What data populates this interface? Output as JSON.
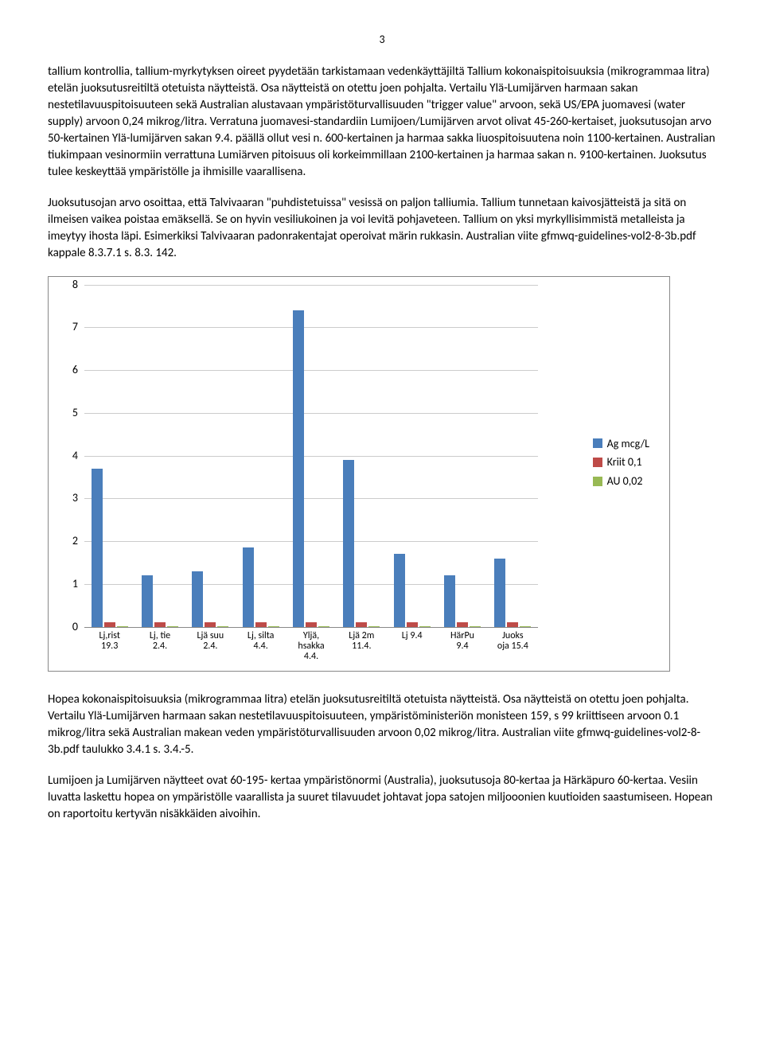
{
  "page_number": "3",
  "paragraphs": {
    "p1": "tallium kontrollia, tallium-myrkytyksen oireet pyydetään tarkistamaan vedenkäyttäjiltä Tallium kokonaispitoisuuksia (mikrogrammaa litra) etelän juoksutusreitiltä otetuista näytteistä. Osa näytteistä on otettu joen pohjalta. Vertailu Ylä-Lumijärven harmaan sakan nestetilavuuspitoisuuteen sekä Australian alustavaan ympäristöturvallisuuden \"trigger value\" arvoon, sekä US/EPA juomavesi (water supply) arvoon 0,24 mikrog/litra. Verratuna juomavesi-standardiin Lumijoen/Lumijärven arvot olivat 45-260-kertaiset, juoksutusojan arvo 50-kertainen Ylä-lumijärven sakan 9.4. päällä ollut vesi n. 600-kertainen ja harmaa sakka liuospitoisuutena noin 1100-kertainen. Australian tiukimpaan vesinormiin verrattuna Lumiärven pitoisuus oli korkeimmillaan 2100-kertainen ja harmaa sakan n. 9100-kertainen. Juoksutus tulee keskeyttää ympäristölle ja ihmisille vaarallisena.",
    "p2": "Juoksutusojan arvo osoittaa, että Talvivaaran \"puhdistetuissa\" vesissä on paljon talliumia. Tallium tunnetaan kaivosjätteistä ja sitä on ilmeisen vaikea poistaa emäksellä. Se on hyvin vesiliukoinen ja voi levitä pohjaveteen. Tallium on yksi myrkyllisimmistä metalleista ja imeytyy ihosta läpi. Esimerkiksi Talvivaaran padonrakentajat operoivat märin rukkasin.  Australian viite gfmwq-guidelines-vol2-8-3b.pdf  kappale 8.3.7.1  s. 8.3. 142.",
    "p3": "Hopea kokonaispitoisuuksia (mikrogrammaa litra) etelän juoksutusreitiltä otetuista näytteistä. Osa näytteistä on otettu joen  pohjalta. Vertailu Ylä-Lumijärven harmaan sakan nestetilavuuspitoisuuteen, ympäristöministeriön monisteen 159, s 99 kriittiseen arvoon 0.1 mikrog/litra sekä Australian makean veden ympäristöturvallisuuden arvoon 0,02 mikrog/litra. Australian viite gfmwq-guidelines-vol2-8-3b.pdf taulukko 3.4.1  s. 3.4.-5.",
    "p4": "Lumijoen ja Lumijärven näytteet ovat 60-195- kertaa ympäristönormi (Australia), juoksutusoja 80-kertaa ja Härkäpuro 60-kertaa.  Vesiin luvatta laskettu hopea on ympäristölle vaarallista ja suuret tilavuudet johtavat jopa satojen miljooonien kuutioiden saastumiseen. Hopean on raportoitu kertyvän nisäkkäiden aivoihin."
  },
  "chart": {
    "type": "bar",
    "ylim": [
      0,
      8
    ],
    "ytick_step": 1,
    "yticks": [
      "0",
      "1",
      "2",
      "3",
      "4",
      "5",
      "6",
      "7",
      "8"
    ],
    "grid_color": "#cccccc",
    "background_color": "#ffffff",
    "series": [
      {
        "name": "Ag mcg/L",
        "color": "#4a7ebb"
      },
      {
        "name": "Kriit 0,1",
        "color": "#be4b48"
      },
      {
        "name": "AU 0,02",
        "color": "#98b954"
      }
    ],
    "categories": [
      {
        "label": "Lj,rist\n19.3",
        "values": [
          3.7,
          0.1,
          0.02
        ]
      },
      {
        "label": "Lj, tie\n2.4.",
        "values": [
          1.2,
          0.1,
          0.02
        ]
      },
      {
        "label": "Ljä suu\n2.4.",
        "values": [
          1.3,
          0.1,
          0.02
        ]
      },
      {
        "label": "Lj, silta\n4.4.",
        "values": [
          1.85,
          0.1,
          0.02
        ]
      },
      {
        "label": "Yljä,\nhsakka\n4.4.",
        "values": [
          7.4,
          0.1,
          0.02
        ]
      },
      {
        "label": "Ljä 2m\n11.4.",
        "values": [
          3.9,
          0.1,
          0.02
        ]
      },
      {
        "label": "Lj 9.4",
        "values": [
          1.7,
          0.1,
          0.02
        ]
      },
      {
        "label": "HärPu\n9.4",
        "values": [
          1.2,
          0.1,
          0.02
        ]
      },
      {
        "label": "Juoks\noja 15.4",
        "values": [
          1.6,
          0.1,
          0.02
        ]
      }
    ],
    "legend_labels": [
      "Ag mcg/L",
      "Kriit 0,1",
      "AU 0,02"
    ]
  }
}
